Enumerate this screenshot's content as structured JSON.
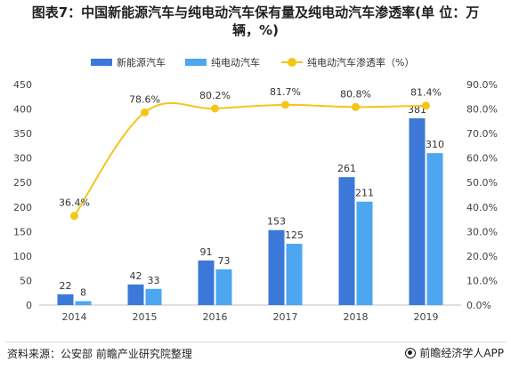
{
  "title": "图表7：中国新能源汽车与纯电动汽车保有量及纯电动汽车渗透率(单 位：万辆，%)",
  "legend": {
    "nev": "新能源汽车",
    "bev": "纯电动汽车",
    "rate": "纯电动汽车渗透率（%）"
  },
  "colors": {
    "nev": "#3b78d8",
    "bev": "#4ca6f0",
    "rate": "#f5c518"
  },
  "chart_data": {
    "type": "bar",
    "categories": [
      "2014",
      "2015",
      "2016",
      "2017",
      "2018",
      "2019"
    ],
    "series": [
      {
        "name": "新能源汽车",
        "type": "bar",
        "axis": "left",
        "values": [
          22,
          42,
          91,
          153,
          261,
          381
        ]
      },
      {
        "name": "纯电动汽车",
        "type": "bar",
        "axis": "left",
        "values": [
          8,
          33,
          73,
          125,
          211,
          310
        ]
      },
      {
        "name": "纯电动汽车渗透率（%）",
        "type": "line",
        "axis": "right",
        "values": [
          36.4,
          78.6,
          80.2,
          81.7,
          80.8,
          81.4
        ]
      }
    ],
    "ylim": [
      0,
      450
    ],
    "yticks": [
      "0",
      "50",
      "100",
      "150",
      "200",
      "250",
      "300",
      "350",
      "400",
      "450"
    ],
    "y2lim": [
      0,
      90
    ],
    "y2ticks": [
      "0.0%",
      "10.0%",
      "20.0%",
      "30.0%",
      "40.0%",
      "50.0%",
      "60.0%",
      "70.0%",
      "80.0%",
      "90.0%"
    ],
    "bar_labels": {
      "nev": [
        "22",
        "42",
        "91",
        "153",
        "261",
        "381"
      ],
      "bev": [
        "8",
        "33",
        "73",
        "125",
        "211",
        "310"
      ]
    },
    "rate_labels": [
      "36.4%",
      "78.6%",
      "80.2%",
      "81.7%",
      "80.8%",
      "81.4%"
    ],
    "grid": false,
    "legend_position": "top"
  },
  "footer": {
    "source": "资料来源：公安部 前瞻产业研究院整理",
    "brand": "前瞻经济学人APP"
  }
}
